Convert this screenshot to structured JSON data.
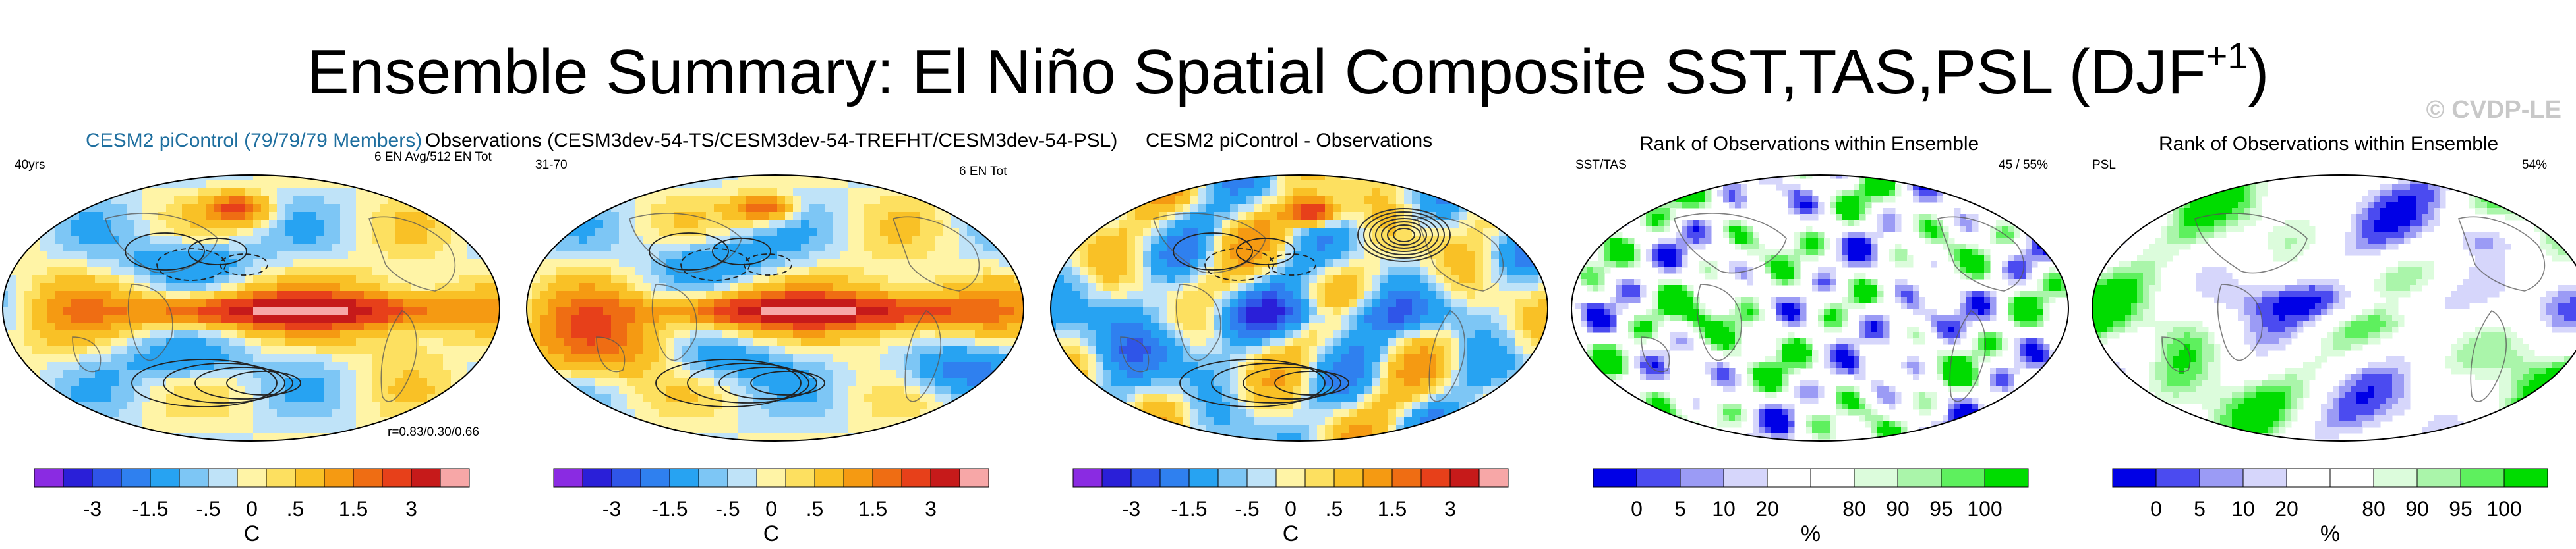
{
  "title": {
    "main": "Ensemble Summary: El Niño Spatial Composite SST,TAS,PSL (DJF",
    "sup": "+1",
    "close": ")"
  },
  "watermark": "© CVDP-LE",
  "colors": {
    "diverging": [
      "#8a2be2",
      "#2a1fd8",
      "#2f55e8",
      "#2f80ef",
      "#27a3f2",
      "#7dc6f5",
      "#bfe3f8",
      "#fff4a6",
      "#fde060",
      "#f9c126",
      "#f59a12",
      "#ef6d13",
      "#e7401a",
      "#c61a1a",
      "#f7a7a7"
    ],
    "rank": [
      "#0000e6",
      "#4b4bf0",
      "#9b9bf5",
      "#d6d6fb",
      "#ffffff",
      "#ffffff",
      "#dcfcdc",
      "#aaf5aa",
      "#5ef05e",
      "#00dc00"
    ]
  },
  "panels": [
    {
      "header": "CESM2 piControl (79/79/79 Members)",
      "left_note": "40yrs",
      "right_note": "6 EN Avg/512 EN Tot",
      "bottom_note": "r=0.83/0.30/0.66",
      "type": "diverging"
    },
    {
      "header": "Observations (CESM3dev-54-TS/CESM3dev-54-TREFHT/CESM3dev-54-PSL)",
      "left_note": "31-70",
      "right_note": "6 EN Tot",
      "type": "diverging"
    },
    {
      "header": "CESM2 piControl - Observations",
      "type": "diverging"
    },
    {
      "header": "Rank of Observations within Ensemble",
      "left_note": "SST/TAS",
      "right_note": "45 /  55%",
      "type": "rank"
    },
    {
      "header": "Rank of Observations within Ensemble",
      "left_note": "PSL",
      "right_note": "54%",
      "type": "rank"
    }
  ],
  "colorbars": {
    "diverging": {
      "ticks": [
        "-3",
        "-1.5",
        "-.5",
        "0",
        ".5",
        "1.5",
        "3"
      ],
      "unit": "C"
    },
    "rank": {
      "ticks": [
        "0",
        "5",
        "10",
        "20",
        "80",
        "90",
        "95",
        "100"
      ],
      "unit": "%"
    }
  },
  "chart_data": {
    "type": "heatmap",
    "title": "Ensemble Summary: El Niño Spatial Composite SST,TAS,PSL (DJF+1)",
    "maps": [
      "CESM2 piControl (79/79/79 Members)",
      "Observations (CESM3dev-54-TS/CESM3dev-54-TREFHT/CESM3dev-54-PSL)",
      "CESM2 piControl - Observations",
      "Rank of Observations within Ensemble (SST/TAS)",
      "Rank of Observations within Ensemble (PSL)"
    ],
    "pattern_correlation": "r=0.83/0.30/0.66",
    "rank_percent": {
      "SST/TAS": "45 /  55%",
      "PSL": "54%"
    },
    "colorbar_temperature": {
      "unit": "C",
      "ticks": [
        -3,
        -1.5,
        -0.5,
        0,
        0.5,
        1.5,
        3
      ]
    },
    "colorbar_rank": {
      "unit": "%",
      "ticks": [
        0,
        5,
        10,
        20,
        80,
        90,
        95,
        100
      ]
    }
  }
}
